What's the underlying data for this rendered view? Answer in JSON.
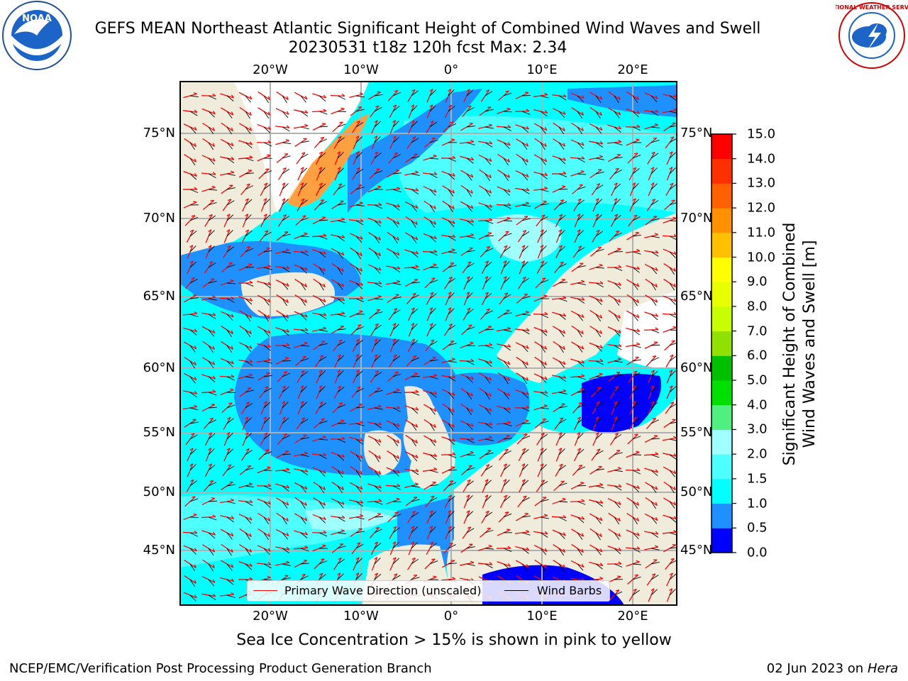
{
  "header": {
    "title_line1": "GEFS MEAN Northeast Atlantic Significant Height of Combined Wind Waves and Swell",
    "title_line2": "20230531 t18z 120h fcst   Max: 2.34"
  },
  "logos": {
    "left": {
      "icon": "noaa-logo-icon",
      "text": "NOAA"
    },
    "right": {
      "icon": "nws-logo-icon",
      "text": "NATIONAL WEATHER SERVICE"
    }
  },
  "map": {
    "lon_labels": [
      "20°W",
      "10°W",
      "0°",
      "10°E",
      "20°E"
    ],
    "lat_labels": [
      "75°N",
      "70°N",
      "65°N",
      "60°N",
      "55°N",
      "50°N",
      "45°N"
    ],
    "colors": {
      "land": "#efecdc",
      "ice_free_white": "#ffffff",
      "grid": "#b0b0b0",
      "wave_arrow": "#ff0000",
      "wind_barb": "#000000"
    }
  },
  "colorbar": {
    "label": "Significant Height of Combined\nWind Waves and Swell [m]",
    "ticks": [
      "0.0",
      "0.5",
      "1.0",
      "1.5",
      "2.0",
      "3.0",
      "4.0",
      "5.0",
      "6.0",
      "7.0",
      "8.0",
      "9.0",
      "10.0",
      "11.0",
      "12.0",
      "13.0",
      "14.0",
      "15.0"
    ],
    "colors": [
      "#0000ff",
      "#1e90ff",
      "#00ffff",
      "#4dffff",
      "#a0ffff",
      "#50f080",
      "#00e000",
      "#00c000",
      "#90e000",
      "#c8ff00",
      "#e8ff00",
      "#ffff00",
      "#ffc000",
      "#ff9000",
      "#ff6000",
      "#ff3000",
      "#ff0000"
    ]
  },
  "legend": {
    "wave_label": "Primary Wave Direction (unscaled)",
    "wind_label": "Wind Barbs"
  },
  "footer": {
    "ice_note": "Sea Ice Concentration > 15% is shown in pink to yellow",
    "credit": "NCEP/EMC/Verification Post Processing Product Generation Branch",
    "date": "02 Jun 2023 on",
    "machine": "Hera"
  }
}
